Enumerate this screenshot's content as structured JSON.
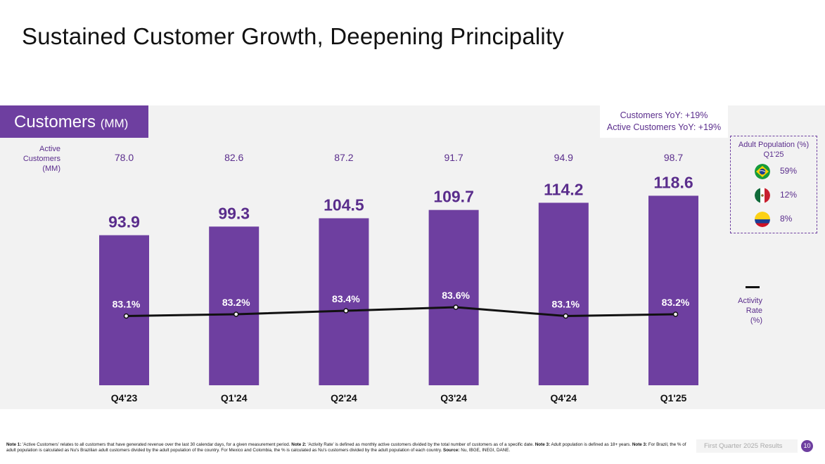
{
  "page": {
    "title": "Sustained Customer Growth, Deepening Principality",
    "section_label": "Customers",
    "section_unit": "(MM)",
    "yoy_customers": "Customers YoY: +19%",
    "yoy_active": "Active Customers YoY: +19%",
    "active_label": [
      "Active",
      "Customers",
      "(MM)"
    ],
    "activity_label": [
      "Activity",
      "Rate",
      "(%)"
    ],
    "footer_results": "First Quarter 2025 Results",
    "page_number": "10"
  },
  "adult_population": {
    "title_line1": "Adult Population (%)",
    "title_line2": "Q1'25",
    "countries": [
      {
        "name": "brazil-flag-icon",
        "pct": "59%"
      },
      {
        "name": "mexico-flag-icon",
        "pct": "12%"
      },
      {
        "name": "colombia-flag-icon",
        "pct": "8%"
      }
    ]
  },
  "footnote": {
    "n1_label": "Note 1:",
    "n1_text": " 'Active Customers' relates to all customers that have generated revenue over the last 30 calendar days, for a given measurement period. ",
    "n2_label": "Note 2:",
    "n2_text": " 'Activity Rate' is defined as monthly active customers divided by the total number of customers as of a specific date. ",
    "n3_label": "Note 3:",
    "n3_text": " Adult population is defined as 18+ years. ",
    "n3b_label": "Note 3:",
    "n3b_text": " For Brazil, the % of adult population is calculated as Nu's Brazilian adult customers divided by the adult population of the country. For Mexico and Colombia, the % is calculated as Nu's customers divided by the adult population of each country. ",
    "src_label": "Source:",
    "src_text": " Nu, IBGE, INEGI, DANE."
  },
  "chart_data": {
    "type": "bar",
    "title": "Customers (MM)",
    "categories": [
      "Q4'23",
      "Q1'24",
      "Q2'24",
      "Q3'24",
      "Q4'24",
      "Q1'25"
    ],
    "series": [
      {
        "name": "Customers (MM)",
        "type": "bar",
        "values": [
          93.9,
          99.3,
          104.5,
          109.7,
          114.2,
          118.6
        ],
        "labels": [
          "93.9",
          "99.3",
          "104.5",
          "109.7",
          "114.2",
          "118.6"
        ]
      },
      {
        "name": "Active Customers (MM)",
        "type": "text",
        "values": [
          78.0,
          82.6,
          87.2,
          91.7,
          94.9,
          98.7
        ],
        "labels": [
          "78.0",
          "82.6",
          "87.2",
          "91.7",
          "94.9",
          "98.7"
        ]
      },
      {
        "name": "Activity Rate (%)",
        "type": "line",
        "values": [
          83.1,
          83.2,
          83.4,
          83.6,
          83.1,
          83.2
        ],
        "labels": [
          "83.1%",
          "83.2%",
          "83.4%",
          "83.6%",
          "83.1%",
          "83.2%"
        ]
      }
    ],
    "ylim": [
      0,
      130
    ],
    "colors": {
      "bar": "#6e3fa0",
      "line": "#111111",
      "label": "#5a2d8c"
    }
  }
}
